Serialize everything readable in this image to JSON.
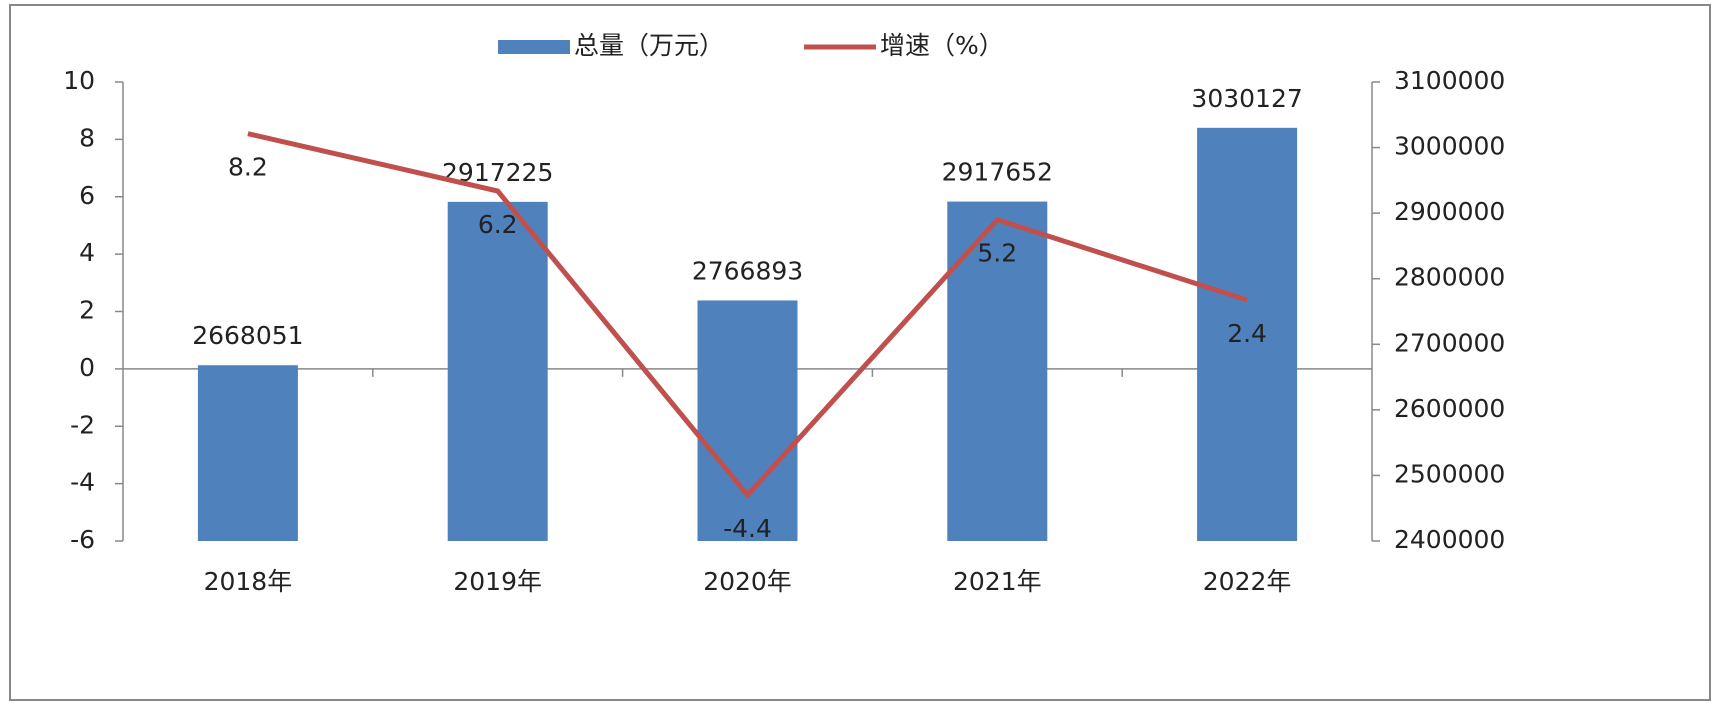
{
  "chart_data": {
    "type": "bar",
    "categories": [
      "2018年",
      "2019年",
      "2020年",
      "2021年",
      "2022年"
    ],
    "series": [
      {
        "name": "总量（万元）",
        "type": "bar",
        "color": "#4f81bd",
        "axis": "y2",
        "values": [
          2668051,
          2917225,
          2766893,
          2917652,
          3030127
        ]
      },
      {
        "name": "增速（%）",
        "type": "line",
        "color": "#c0504d",
        "values": [
          8.2,
          6.2,
          -4.4,
          5.2,
          2.4
        ]
      }
    ],
    "ylim": [
      -6,
      10
    ],
    "yticks": [
      -6,
      -4,
      -2,
      0,
      2,
      4,
      6,
      8,
      10
    ],
    "y2lim": [
      2400000,
      3100000
    ],
    "y2ticks": [
      2400000,
      2500000,
      2600000,
      2700000,
      2800000,
      2900000,
      3000000,
      3100000
    ],
    "legend": "top",
    "grid": false
  }
}
